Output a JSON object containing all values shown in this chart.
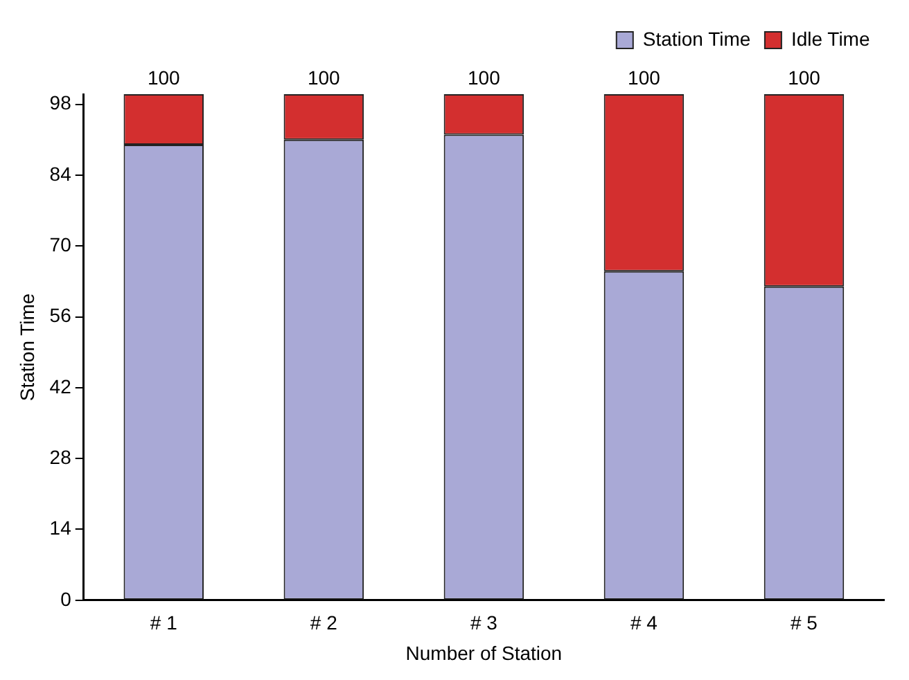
{
  "chart_data": {
    "type": "bar",
    "stacked": true,
    "xlabel": "Number of Station",
    "ylabel": "Station Time",
    "categories": [
      "# 1",
      "# 2",
      "# 3",
      "# 4",
      "# 5"
    ],
    "series": [
      {
        "name": "Station Time",
        "color": "#a9a9d6",
        "values": [
          90,
          91,
          92,
          65,
          62
        ]
      },
      {
        "name": "Idle Time",
        "color": "#d32f2f",
        "values": [
          10,
          9,
          8,
          35,
          38
        ]
      }
    ],
    "totals": [
      "100",
      "100",
      "100",
      "100",
      "100"
    ],
    "ylim": [
      0,
      100
    ],
    "yticks": [
      0,
      14,
      28,
      42,
      56,
      70,
      84,
      98
    ],
    "grid": false,
    "legend": "top right"
  }
}
